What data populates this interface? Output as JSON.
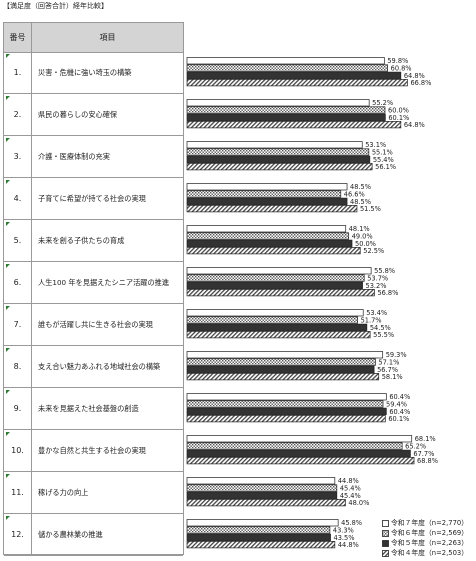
{
  "caption": "【満足度（回答合計）経年比較】",
  "table": {
    "header_num": "番号",
    "header_item": "項目",
    "rows": [
      {
        "num": "1.",
        "label": "災害・危機に強い埼玉の構築"
      },
      {
        "num": "2.",
        "label": "県民の暮らしの安心確保"
      },
      {
        "num": "3.",
        "label": "介護・医療体制の充実"
      },
      {
        "num": "4.",
        "label": "子育てに希望が持てる社会の実現"
      },
      {
        "num": "5.",
        "label": "未来を創る子供たちの育成"
      },
      {
        "num": "6.",
        "label": "人生100 年を見据えたシニア活躍の推進"
      },
      {
        "num": "7.",
        "label": "誰もが活躍し共に生きる社会の実現"
      },
      {
        "num": "8.",
        "label": "支え合い魅力あふれる地域社会の構築"
      },
      {
        "num": "9.",
        "label": "未来を見据えた社会基盤の創造"
      },
      {
        "num": "10.",
        "label": "豊かな自然と共生する社会の実現"
      },
      {
        "num": "11.",
        "label": "稼げる力の向上"
      },
      {
        "num": "12.",
        "label": "儲かる農林業の推進"
      }
    ]
  },
  "legend": {
    "items": [
      {
        "label": "令和７年度（n=2,770）",
        "pattern": "white"
      },
      {
        "label": "令和６年度（n=2,569）",
        "pattern": "dots"
      },
      {
        "label": "令和５年度（n=2,263）",
        "pattern": "dark"
      },
      {
        "label": "令和４年度（n=2,503）",
        "pattern": "hatch"
      }
    ]
  },
  "chart_data": {
    "type": "bar",
    "orientation": "horizontal",
    "title": "【満足度（回答合計）経年比較】",
    "categories": [
      "災害・危機に強い埼玉の構築",
      "県民の暮らしの安心確保",
      "介護・医療体制の充実",
      "子育てに希望が持てる社会の実現",
      "未来を創る子供たちの育成",
      "人生100 年を見据えたシニア活躍の推進",
      "誰もが活躍し共に生きる社会の実現",
      "支え合い魅力あふれる地域社会の構築",
      "未来を見据えた社会基盤の創造",
      "豊かな自然と共生する社会の実現",
      "稼げる力の向上",
      "儲かる農林業の推進"
    ],
    "series": [
      {
        "name": "令和７年度（n=2,770）",
        "values": [
          59.8,
          55.2,
          53.1,
          48.5,
          48.1,
          55.8,
          53.4,
          59.3,
          60.4,
          68.1,
          44.8,
          45.8
        ]
      },
      {
        "name": "令和６年度（n=2,569）",
        "values": [
          60.8,
          60.0,
          55.1,
          46.6,
          49.0,
          53.7,
          51.7,
          57.1,
          59.4,
          65.2,
          45.4,
          43.3
        ]
      },
      {
        "name": "令和５年度（n=2,263）",
        "values": [
          64.8,
          60.1,
          55.4,
          48.5,
          50.0,
          53.2,
          54.5,
          56.7,
          60.4,
          67.7,
          45.4,
          43.5
        ]
      },
      {
        "name": "令和４年度（n=2,503）",
        "values": [
          66.8,
          64.8,
          56.1,
          51.5,
          52.5,
          56.8,
          55.5,
          58.1,
          60.1,
          68.8,
          48.0,
          44.8
        ]
      }
    ],
    "value_suffix": "%",
    "xlim": [
      0,
      100
    ],
    "grid": false,
    "legend_position": "bottom-right",
    "colors": {
      "white": "#ffffff",
      "dots": "#777777",
      "dark": "#333333",
      "hatch": "#444444",
      "border": "#222222"
    }
  }
}
